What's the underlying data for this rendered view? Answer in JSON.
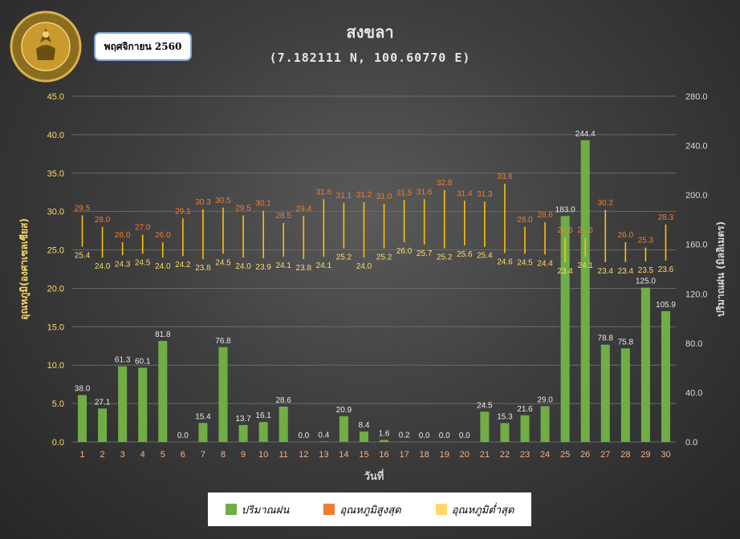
{
  "header": {
    "title": "สงขลา",
    "coords": "(7.182111 N, 100.60770 E)",
    "badge": "พฤศจิกายน 2560"
  },
  "logo": {
    "text": "METEOROLOGICAL DEPARTMENT",
    "icon": "tmd-seal-icon"
  },
  "colors": {
    "rain": "#70ad47",
    "tmax": "#ed7d31",
    "tmin": "#ffc000",
    "range_line": "#ffc000",
    "axis_text": "#d9d9d9",
    "left_axis_text": "#ffd966",
    "x_tick_text": "#f4b183"
  },
  "chart_data": {
    "type": "bar",
    "xlabel": "วันที่",
    "ylabel_left": "อุณหภูมิ(องศาเซลเซียส)",
    "ylabel_right": "ปริมาณฝน (มิลลิเมตร)",
    "ylim_left": [
      0,
      45
    ],
    "ylim_right": [
      0,
      280
    ],
    "left_ticks": [
      "0.0",
      "5.0",
      "10.0",
      "15.0",
      "20.0",
      "25.0",
      "30.0",
      "35.0",
      "40.0",
      "45.0"
    ],
    "right_ticks": [
      "0.0",
      "40.0",
      "80.0",
      "120.0",
      "160.0",
      "200.0",
      "240.0",
      "280.0"
    ],
    "categories": [
      "1",
      "2",
      "3",
      "4",
      "5",
      "6",
      "7",
      "8",
      "9",
      "10",
      "11",
      "12",
      "13",
      "14",
      "15",
      "16",
      "17",
      "18",
      "19",
      "20",
      "21",
      "22",
      "23",
      "24",
      "25",
      "26",
      "27",
      "28",
      "29",
      "30"
    ],
    "series": [
      {
        "name": "ปริมาณฝน",
        "axis": "right",
        "values": [
          38.0,
          27.1,
          61.3,
          60.1,
          81.8,
          0.0,
          15.4,
          76.8,
          13.7,
          16.1,
          28.6,
          0.0,
          0.4,
          20.9,
          8.4,
          1.6,
          0.2,
          0.0,
          0.0,
          0.0,
          24.5,
          15.3,
          21.6,
          29.0,
          183.0,
          244.4,
          78.8,
          75.8,
          125.0,
          105.9
        ]
      },
      {
        "name": "อุณหภูมิสูงสุด",
        "axis": "left",
        "values": [
          29.5,
          28.0,
          26.0,
          27.0,
          26.0,
          29.1,
          30.3,
          30.5,
          29.5,
          30.1,
          28.5,
          29.4,
          31.6,
          31.1,
          31.2,
          31.0,
          31.5,
          31.6,
          32.8,
          31.4,
          31.3,
          33.6,
          28.0,
          28.6,
          26.6,
          26.6,
          30.2,
          26.0,
          25.3,
          28.3
        ]
      },
      {
        "name": "อุณหภูมิต่ำสุด",
        "axis": "left",
        "values": [
          25.4,
          24.0,
          24.3,
          24.5,
          24.0,
          24.2,
          23.8,
          24.5,
          24.0,
          23.9,
          24.1,
          23.8,
          24.1,
          25.2,
          24.0,
          25.2,
          26.0,
          25.7,
          25.2,
          25.6,
          25.4,
          24.6,
          24.5,
          24.4,
          23.4,
          24.1,
          23.4,
          23.4,
          23.5,
          23.6
        ]
      }
    ],
    "legend": [
      "ปริมาณฝน",
      "อุณหภูมิสูงสุด",
      "อุณหภูมิต่ำสุด"
    ],
    "legend_position": "bottom",
    "grid": true
  }
}
